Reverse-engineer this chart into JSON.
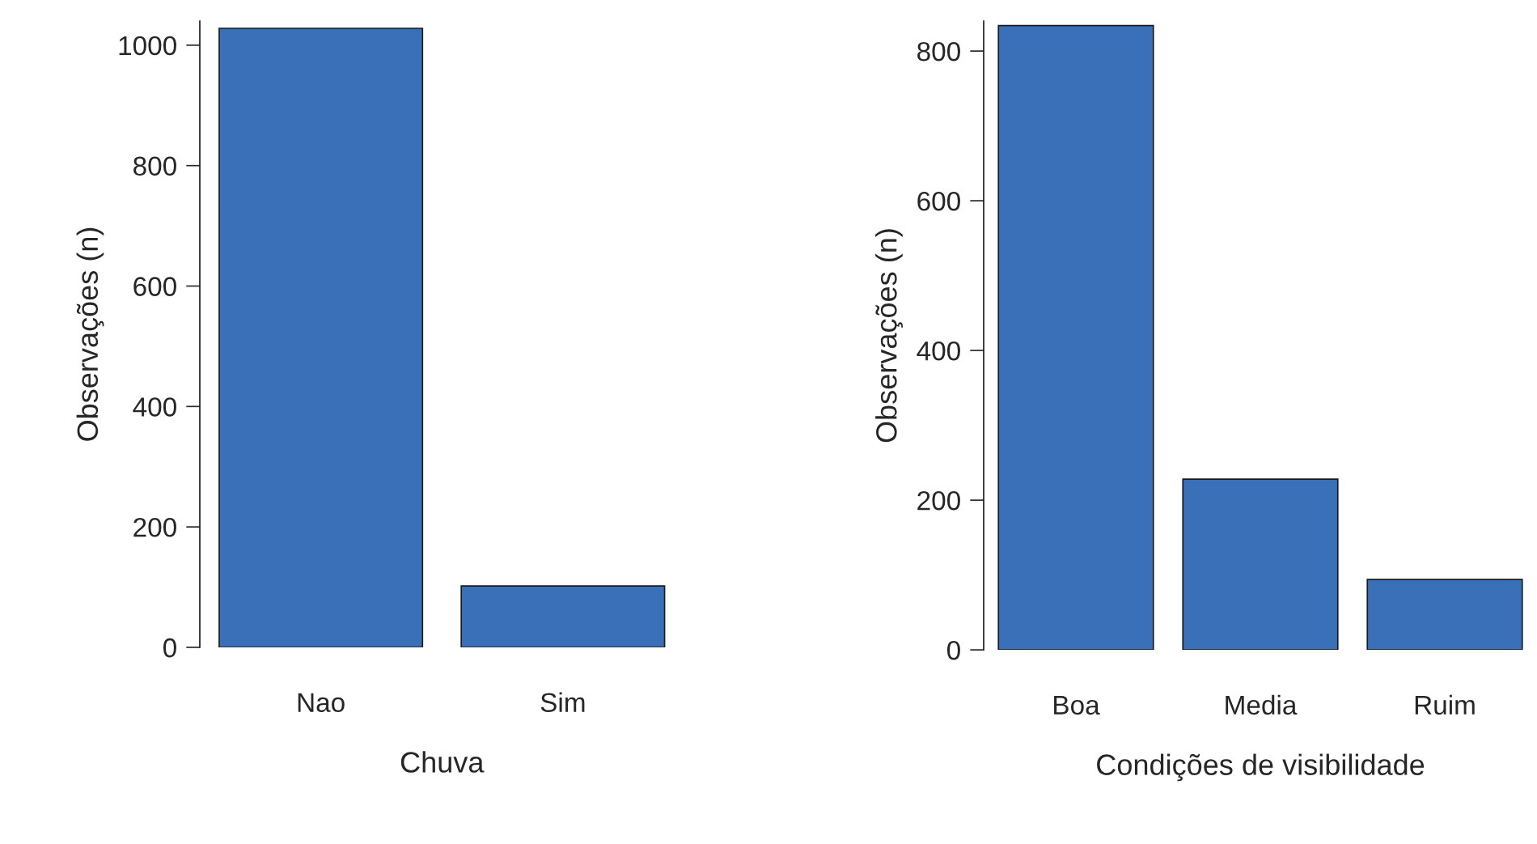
{
  "chart_data": [
    {
      "type": "bar",
      "xlabel": "Chuva",
      "ylabel": "Observações (n)",
      "categories": [
        "Nao",
        "Sim"
      ],
      "values": [
        1028,
        102
      ],
      "color": "#3a70b8",
      "ylim": [
        0,
        1040
      ],
      "yticks": [
        0,
        200,
        400,
        600,
        800,
        1000
      ],
      "grid": false,
      "legend": false
    },
    {
      "type": "bar",
      "xlabel": "Condições de visibilidade",
      "ylabel": "Observações (n)",
      "categories": [
        "Boa",
        "Media",
        "Ruim"
      ],
      "values": [
        834,
        228,
        94
      ],
      "color": "#3a70b8",
      "ylim": [
        0,
        840
      ],
      "yticks": [
        0,
        200,
        400,
        600,
        800
      ],
      "grid": false,
      "legend": false
    }
  ]
}
